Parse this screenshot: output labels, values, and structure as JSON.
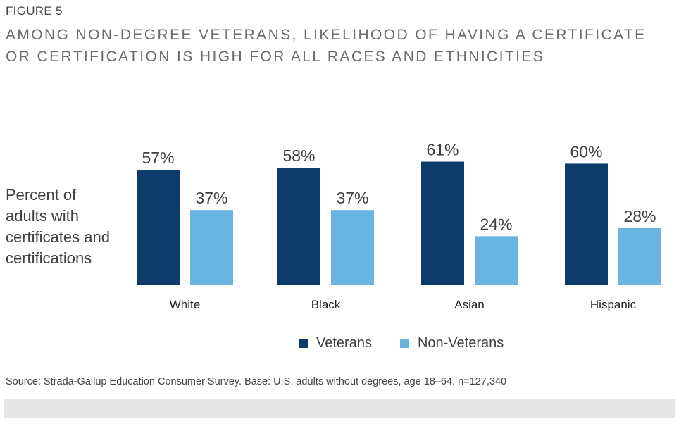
{
  "figure_label": "FIGURE 5",
  "title": "AMONG NON-DEGREE VETERANS, LIKELIHOOD OF HAVING A CERTIFICATE OR CERTIFICATION IS HIGH FOR ALL RACES AND ETHNICITIES",
  "source": "Source: Strada-Gallup Education Consumer Survey. Base: U.S. adults without degrees, age 18–64, n=127,340",
  "chart_data": {
    "type": "bar",
    "title": "AMONG NON-DEGREE VETERANS, LIKELIHOOD OF HAVING A CERTIFICATE OR CERTIFICATION IS HIGH FOR ALL RACES AND ETHNICITIES",
    "xlabel": "",
    "ylabel": "Percent of adults with certificates and certifications",
    "categories": [
      "White",
      "Black",
      "Asian",
      "Hispanic"
    ],
    "series": [
      {
        "name": "Veterans",
        "values": [
          57,
          58,
          61,
          60
        ],
        "labels": [
          "57%",
          "58%",
          "61%",
          "60%"
        ],
        "color": "#0d3c6a"
      },
      {
        "name": "Non-Veterans",
        "values": [
          37,
          37,
          24,
          28
        ],
        "labels": [
          "37%",
          "37%",
          "24%",
          "28%"
        ],
        "color": "#6ab4e2"
      }
    ],
    "ylim": [
      0,
      100
    ],
    "grid": false,
    "legend_position": "bottom-center"
  }
}
